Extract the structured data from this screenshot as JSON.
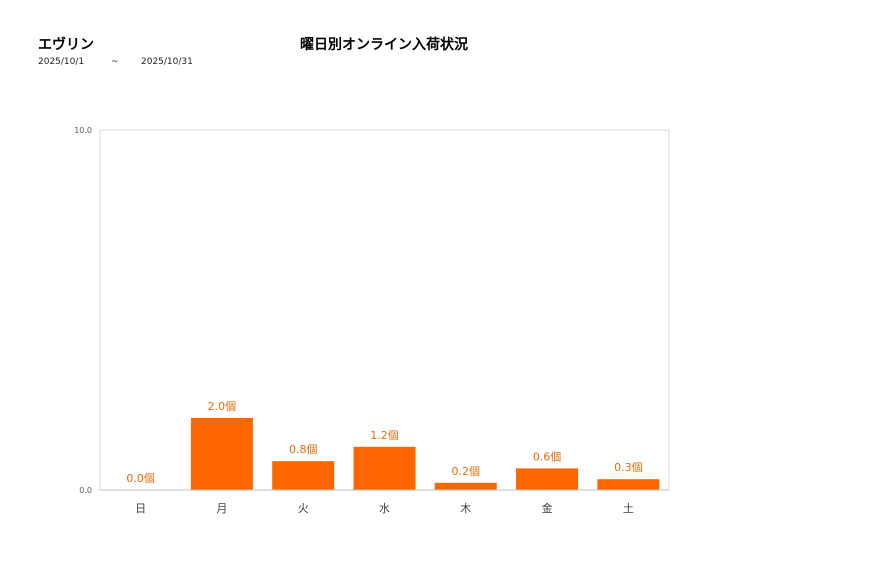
{
  "header": {
    "brand": "エヴリン",
    "title": "曜日別オンライン入荷状況",
    "date_from": "2025/10/1",
    "separator": "~",
    "date_to": "2025/10/31"
  },
  "chart_data": {
    "type": "bar",
    "categories": [
      "日",
      "月",
      "火",
      "水",
      "木",
      "金",
      "土"
    ],
    "values": [
      0.0,
      2.0,
      0.8,
      1.2,
      0.2,
      0.6,
      0.3
    ],
    "data_labels": [
      "0.0個",
      "2.0個",
      "0.8個",
      "1.2個",
      "0.2個",
      "0.6個",
      "0.3個"
    ],
    "y_ticks": [
      "0.0",
      "10.0"
    ],
    "ylim": [
      0,
      10
    ],
    "grid": false,
    "colors": {
      "bar": "#ff6600",
      "label": "#e46c0a",
      "axis": "#bfbfbf"
    }
  }
}
